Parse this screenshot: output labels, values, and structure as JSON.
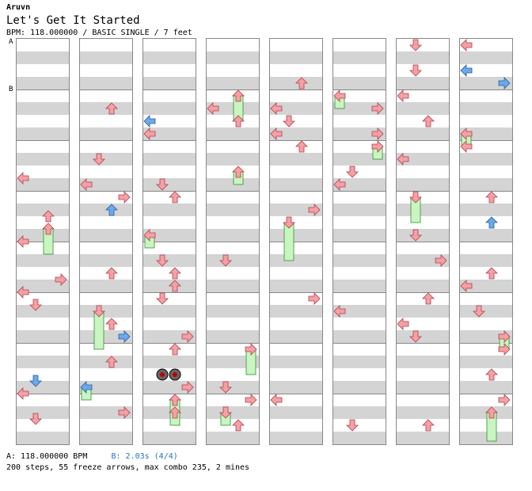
{
  "header": {
    "artist": "Aruvn",
    "title": "Let's Get It Started",
    "meta": "BPM: 118.000000 / BASIC SINGLE / 7 feet"
  },
  "markers": {
    "a": "A",
    "b": "B"
  },
  "footer": {
    "bpm_a": "A: 118.000000 BPM",
    "bpm_b": "B: 2.03s (4/4)",
    "stats": "200 steps, 55 freeze arrows, max combo 235, 2 mines"
  },
  "colors": {
    "normal_arrow": "#f4a0a6",
    "blue_arrow": "#6aa9ea",
    "freeze": "#c8f5c0",
    "stripe": "#d4d4d4",
    "bpm_line": "#2a6fc9"
  },
  "chart": {
    "lanes": 8,
    "directions": [
      "left",
      "down",
      "up",
      "right"
    ]
  }
}
